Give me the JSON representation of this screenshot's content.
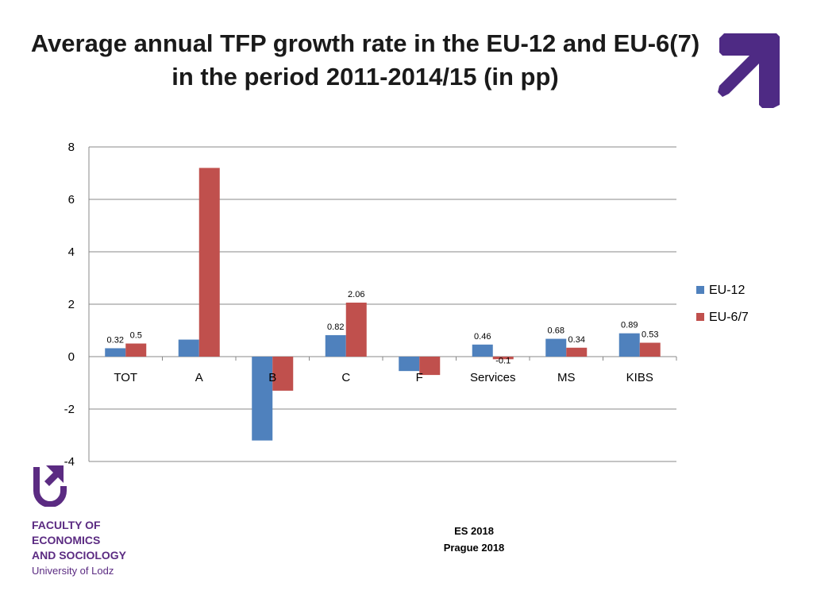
{
  "slide": {
    "title_line1": "Average annual TFP growth rate in the EU-12 and EU-6(7)",
    "title_line2": "in the period 2011-2014/15 (in pp)",
    "logo_lines": [
      "FACULTY OF",
      "ECONOMICS",
      "AND SOCIOLOGY"
    ],
    "university": "University of Lodz",
    "event_line1": "ES 2018",
    "event_line2": "Prague 2018",
    "accent_color": "#5b2b82"
  },
  "chart_data": {
    "type": "bar",
    "title": "Average annual TFP growth rate in the EU-12 and EU-6(7) in the period 2011-2014/15 (in pp)",
    "xlabel": "",
    "ylabel": "",
    "categories": [
      "TOT",
      "A",
      "B",
      "C",
      "F",
      "Services",
      "MS",
      "KIBS"
    ],
    "ylim": [
      -4,
      8
    ],
    "yticks": [
      8,
      6,
      4,
      2,
      0,
      -2,
      -4
    ],
    "grid": true,
    "legend_position": "right",
    "series": [
      {
        "name": "EU-12",
        "color": "#4f81bd",
        "values": [
          0.32,
          0.65,
          -3.2,
          0.82,
          -0.55,
          0.46,
          0.68,
          0.89
        ],
        "labels": [
          "0.32",
          "",
          "",
          "0.82",
          "",
          "0.46",
          "0.68",
          "0.89"
        ]
      },
      {
        "name": "EU-6/7",
        "color": "#c0504d",
        "values": [
          0.5,
          7.2,
          -1.3,
          2.06,
          -0.7,
          -0.1,
          0.34,
          0.53
        ],
        "labels": [
          "0.5",
          "",
          "",
          "2.06",
          "",
          "-0.1",
          "0.34",
          "0.53"
        ]
      }
    ]
  }
}
